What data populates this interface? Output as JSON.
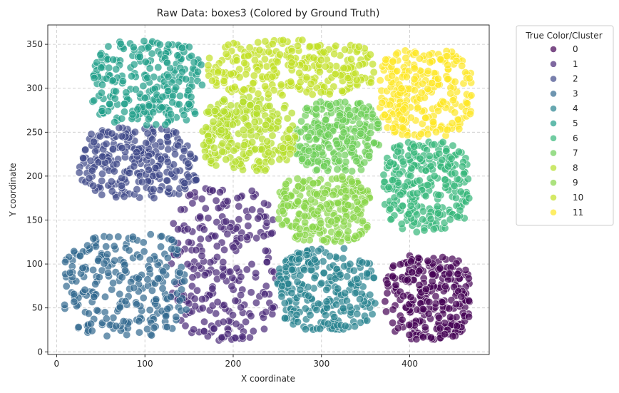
{
  "chart_data": {
    "type": "scatter",
    "title": "Raw Data: boxes3 (Colored by Ground Truth)",
    "xlabel": "X coordinate",
    "ylabel": "Y coordinate",
    "xlim": [
      -10,
      490
    ],
    "ylim": [
      -3,
      372
    ],
    "xticks": [
      0,
      100,
      200,
      300,
      400
    ],
    "yticks": [
      0,
      50,
      100,
      150,
      200,
      250,
      300,
      350
    ],
    "grid": true,
    "grid_style": "dashed",
    "legend_title": "True Color/Cluster",
    "legend_position": "outside-right",
    "point_alpha": 0.7,
    "series": [
      {
        "name": "0",
        "color": "#440154",
        "x_range": [
          372,
          468
        ],
        "y_range": [
          14,
          110
        ]
      },
      {
        "name": "1",
        "color": "#482878",
        "x_range": [
          130,
          250
        ],
        "y_range": [
          12,
          186
        ]
      },
      {
        "name": "2",
        "color": "#3e4989",
        "x_range": [
          25,
          160
        ],
        "y_range": [
          175,
          255
        ]
      },
      {
        "name": "3",
        "color": "#31688e",
        "x_range": [
          8,
          150
        ],
        "y_range": [
          18,
          135
        ]
      },
      {
        "name": "4",
        "color": "#26828e",
        "x_range": [
          250,
          362
        ],
        "y_range": [
          25,
          118
        ]
      },
      {
        "name": "5",
        "color": "#1f9e89",
        "x_range": [
          40,
          165
        ],
        "y_range": [
          258,
          355
        ]
      },
      {
        "name": "6",
        "color": "#35b779",
        "x_range": [
          370,
          468
        ],
        "y_range": [
          135,
          240
        ]
      },
      {
        "name": "7",
        "color": "#6ece58",
        "x_range": [
          270,
          365
        ],
        "y_range": [
          205,
          285
        ]
      },
      {
        "name": "8",
        "color": "#b5de2b",
        "x_range": [
          165,
          270
        ],
        "y_range": [
          205,
          290
        ]
      },
      {
        "name": "9",
        "color": "#89d548",
        "x_range": [
          250,
          355
        ],
        "y_range": [
          125,
          200
        ]
      },
      {
        "name": "10",
        "color": "#c2df23",
        "x_range": [
          170,
          360
        ],
        "y_range": [
          292,
          355
        ]
      },
      {
        "name": "11",
        "color": "#fde725",
        "x_range": [
          365,
          470
        ],
        "y_range": [
          245,
          345
        ]
      }
    ]
  }
}
